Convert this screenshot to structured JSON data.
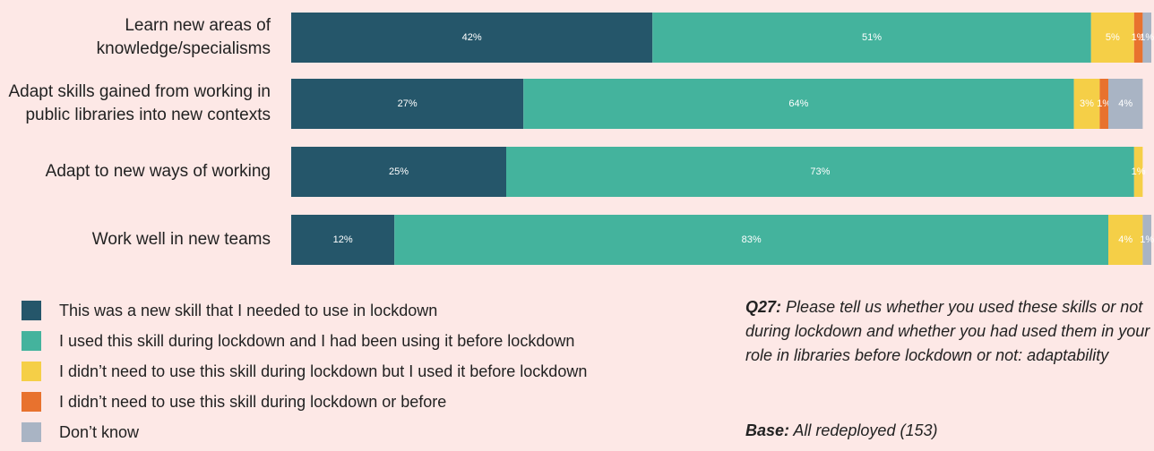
{
  "chart_data": {
    "type": "stacked-bar-horizontal",
    "categories": [
      "Learn new areas of knowledge/specialisms",
      "Adapt skills gained from working in public libraries into new contexts",
      "Adapt to new ways of working",
      "Work well in new teams"
    ],
    "series": [
      {
        "name": "This was a new skill that I needed to use in lockdown",
        "color": "#25566a",
        "values": [
          42,
          27,
          25,
          12
        ],
        "value_labels": [
          "42%",
          "27%",
          "25%",
          "12%"
        ]
      },
      {
        "name": "I used this skill during lockdown and I had been using it before lockdown",
        "color": "#44b39d",
        "values": [
          51,
          64,
          73,
          83
        ],
        "value_labels": [
          "51%",
          "64%",
          "73%",
          "83%"
        ]
      },
      {
        "name": "I didn’t need to use this skill during lockdown but I used it before lockdown",
        "color": "#f5cf47",
        "values": [
          5,
          3,
          1,
          4
        ],
        "value_labels": [
          "5%",
          "3%",
          "1%",
          "4%"
        ]
      },
      {
        "name": "I didn’t need to use this skill during lockdown or before",
        "color": "#e8722e",
        "values": [
          1,
          1,
          null,
          null
        ],
        "value_labels": [
          "1%",
          "1%",
          null,
          null
        ]
      },
      {
        "name": "Don’t know",
        "color": "#a9b4c4",
        "values": [
          1,
          4,
          null,
          1
        ],
        "value_labels": [
          "1%",
          "4%",
          null,
          "1%"
        ]
      }
    ],
    "note": {
      "label": "Q27:",
      "text": "Please tell us whether you used these skills or not during lockdown and whether you had used them in your role in libraries before lockdown or not: adaptability"
    },
    "base": {
      "label": "Base:",
      "text": "All redeployed (153)"
    }
  }
}
